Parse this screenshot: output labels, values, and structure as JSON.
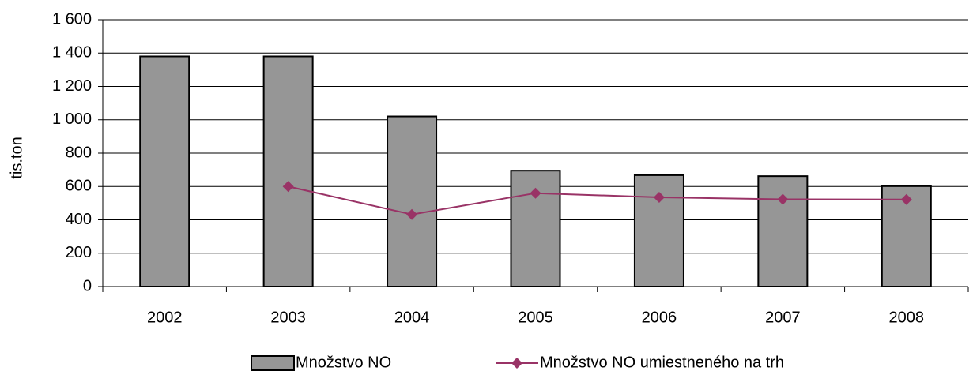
{
  "chart_data": {
    "type": "bar",
    "y_label": "tis.ton",
    "categories": [
      "2002",
      "2003",
      "2004",
      "2005",
      "2006",
      "2007",
      "2008"
    ],
    "series": [
      {
        "name": "Množstvo NO",
        "type": "bar",
        "color": "#969696",
        "values": [
          1380,
          1380,
          1020,
          695,
          668,
          662,
          602
        ]
      },
      {
        "name": "Množstvo NO umiestneného na trh",
        "type": "line",
        "color": "#993366",
        "values": [
          null,
          600,
          432,
          560,
          535,
          523,
          522
        ]
      }
    ],
    "ylim": [
      0,
      1600
    ],
    "yticks": [
      0,
      200,
      400,
      600,
      800,
      {
        "value": 1000,
        "label": "1 000"
      },
      {
        "value": 1200,
        "label": "1 200"
      },
      {
        "value": 1400,
        "label": "1 400"
      },
      {
        "value": 1600,
        "label": "1 600"
      }
    ],
    "grid": true,
    "legend": "bottom"
  }
}
